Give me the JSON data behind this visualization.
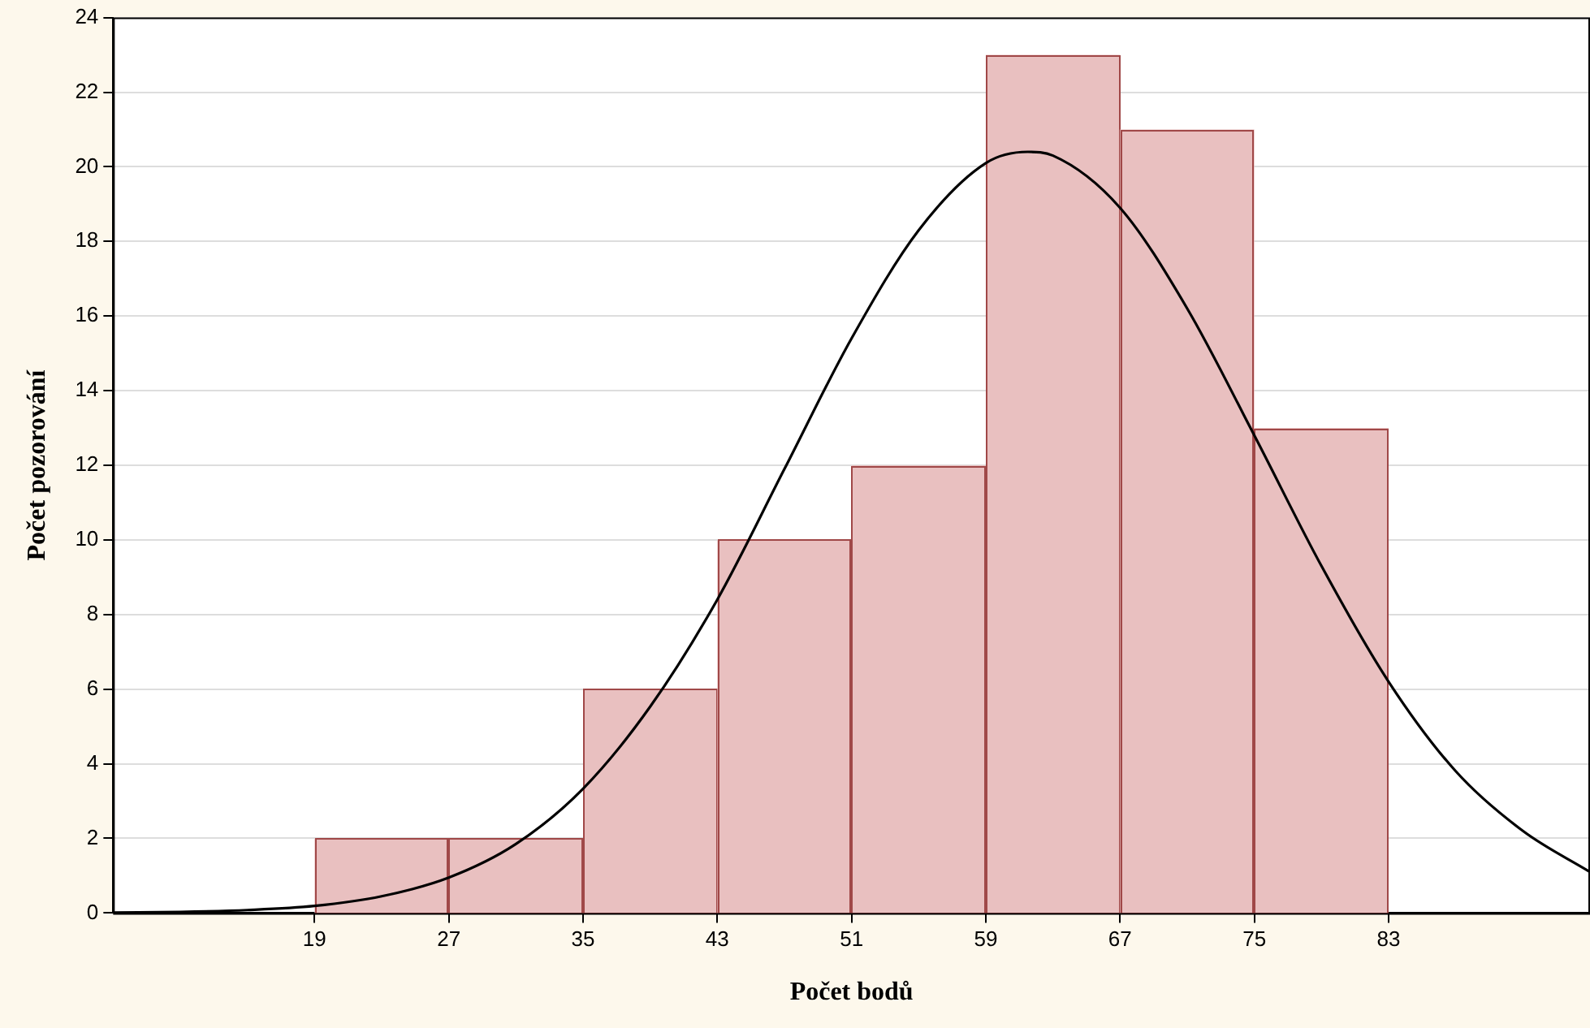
{
  "chart_data": {
    "type": "histogram",
    "xlabel": "Počet bodů",
    "ylabel": "Počet pozorování",
    "bins": [
      19,
      27,
      35,
      43,
      51,
      59,
      67,
      75,
      83
    ],
    "values": [
      2,
      2,
      6,
      10,
      12,
      23,
      21,
      13
    ],
    "color": "#e9c0c0",
    "series": [
      {
        "type": "line",
        "color": "#000000",
        "x": [
          7,
          11,
          15,
          19,
          23,
          27,
          31,
          35,
          39,
          43,
          47,
          51,
          55,
          59,
          61.5,
          63,
          67,
          71,
          75,
          79,
          83,
          87,
          91,
          95
        ],
        "values": [
          0.01,
          0.03,
          0.08,
          0.19,
          0.45,
          0.95,
          1.85,
          3.33,
          5.53,
          8.4,
          11.9,
          15.4,
          18.3,
          20.1,
          20.4,
          20.3,
          18.9,
          16.2,
          12.8,
          9.3,
          6.2,
          3.8,
          2.2,
          1.1
        ]
      }
    ],
    "xlim": [
      7,
      95
    ],
    "xticks": [
      19,
      27,
      35,
      43,
      51,
      59,
      67,
      75,
      83
    ],
    "ylim": [
      0,
      24
    ],
    "yticks": [
      0,
      2,
      4,
      6,
      8,
      10,
      12,
      14,
      16,
      18,
      20,
      22,
      24
    ],
    "grid": "y",
    "legend": false,
    "marker": "none",
    "line_style": "solid"
  }
}
